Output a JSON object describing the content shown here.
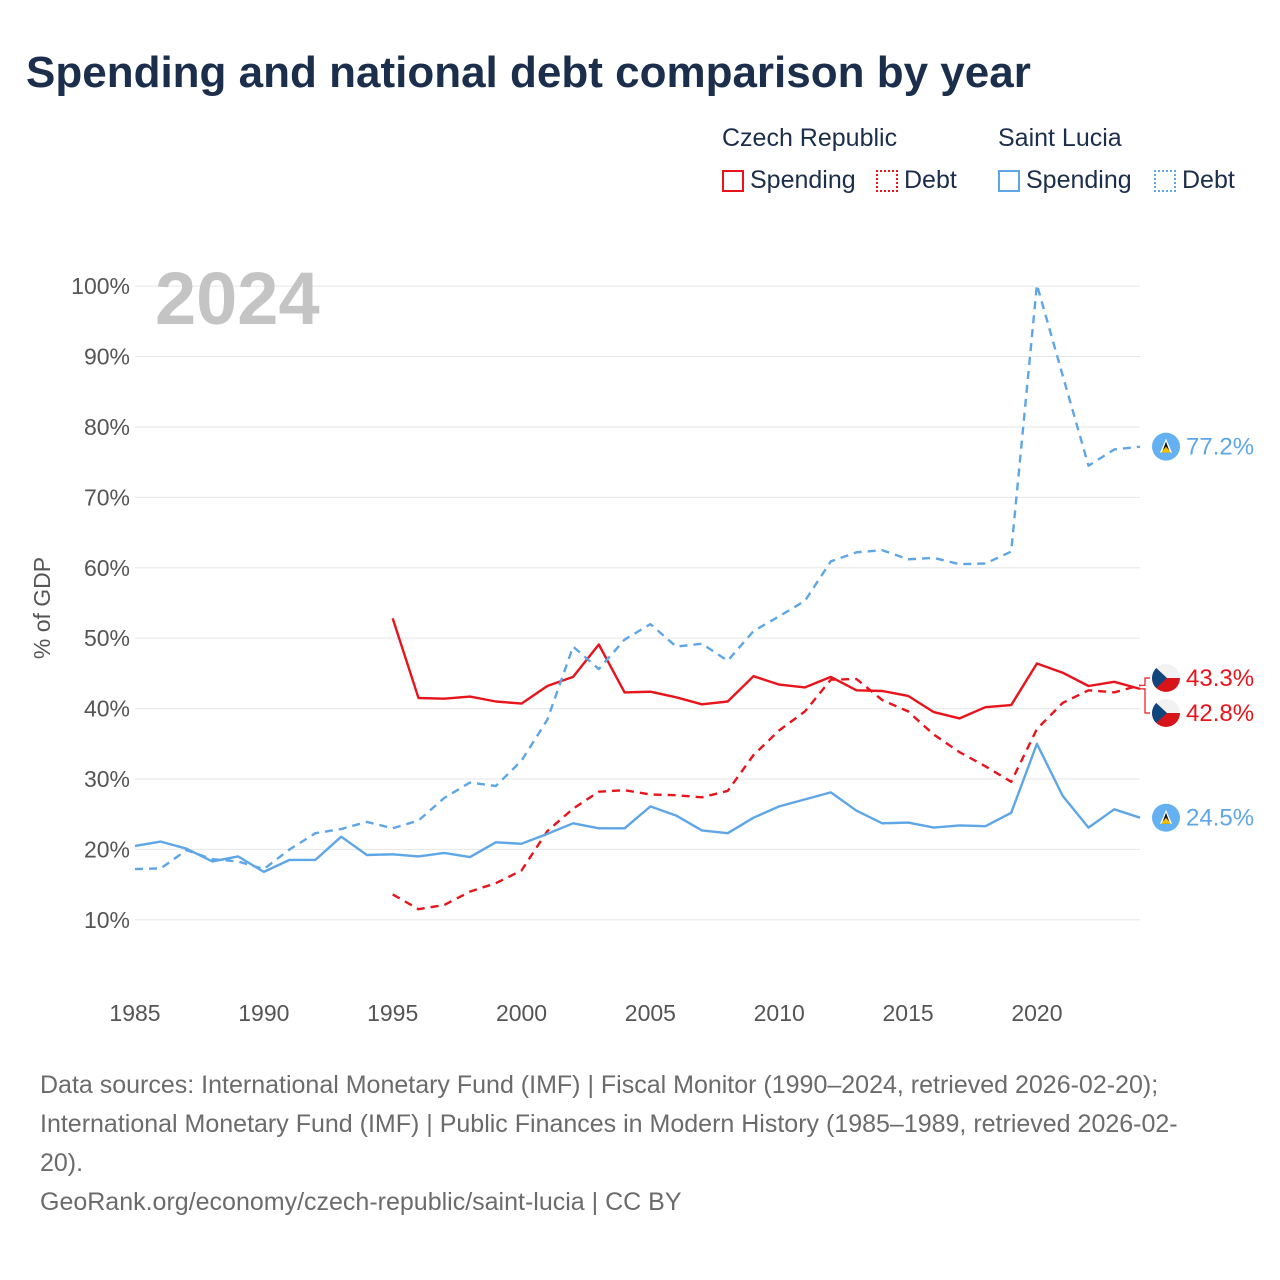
{
  "title": "Spending and national debt comparison by year",
  "legend": {
    "groups": [
      {
        "country": "Czech Republic",
        "color": "#e8141c",
        "items": [
          {
            "label": "Spending",
            "style": "solid"
          },
          {
            "label": "Debt",
            "style": "dotted"
          }
        ]
      },
      {
        "country": "Saint Lucia",
        "color": "#5ea6e6",
        "items": [
          {
            "label": "Spending",
            "style": "solid"
          },
          {
            "label": "Debt",
            "style": "dotted"
          }
        ]
      }
    ]
  },
  "year_watermark": "2024",
  "footer": {
    "sources_line1": "Data sources: International Monetary Fund (IMF) | Fiscal Monitor (1990–2024, retrieved 2026-02-20);",
    "sources_line2": "International Monetary Fund (IMF) | Public Finances in Modern History (1985–1989, retrieved 2026-02-",
    "sources_line3": "20).",
    "attribution": "GeoRank.org/economy/czech-republic/saint-lucia | CC BY"
  },
  "chart_data": {
    "type": "line",
    "title": "Spending and national debt comparison by year",
    "xlabel": "",
    "ylabel": "% of GDP",
    "xlim": [
      1985,
      2024
    ],
    "ylim": [
      5,
      103
    ],
    "x_ticks": [
      1985,
      1990,
      1995,
      2000,
      2005,
      2010,
      2015,
      2020
    ],
    "y_ticks": [
      10,
      20,
      30,
      40,
      50,
      60,
      70,
      80,
      90,
      100
    ],
    "y_tick_labels": [
      "10%",
      "20%",
      "30%",
      "40%",
      "50%",
      "60%",
      "70%",
      "80%",
      "90%",
      "100%"
    ],
    "grid": true,
    "colors": {
      "czech": "#e8141c",
      "lucia": "#5ea6e6"
    },
    "series": [
      {
        "name": "Czech Republic Spending",
        "country": "czech",
        "style": "solid",
        "x": [
          1995,
          1996,
          1997,
          1998,
          1999,
          2000,
          2001,
          2002,
          2003,
          2004,
          2005,
          2006,
          2007,
          2008,
          2009,
          2010,
          2011,
          2012,
          2013,
          2014,
          2015,
          2016,
          2017,
          2018,
          2019,
          2020,
          2021,
          2022,
          2023,
          2024
        ],
        "values": [
          52.8,
          41.5,
          41.4,
          41.7,
          41.0,
          40.7,
          43.2,
          44.5,
          49.1,
          42.3,
          42.4,
          41.6,
          40.6,
          41.0,
          44.6,
          43.4,
          43.0,
          44.5,
          42.6,
          42.5,
          41.8,
          39.5,
          38.6,
          40.2,
          40.5,
          46.4,
          45.1,
          43.2,
          43.8,
          42.8
        ],
        "end_label": "42.8%"
      },
      {
        "name": "Czech Republic Debt",
        "country": "czech",
        "style": "dashed",
        "x": [
          1995,
          1996,
          1997,
          1998,
          1999,
          2000,
          2001,
          2002,
          2003,
          2004,
          2005,
          2006,
          2007,
          2008,
          2009,
          2010,
          2011,
          2012,
          2013,
          2014,
          2015,
          2016,
          2017,
          2018,
          2019,
          2020,
          2021,
          2022,
          2023,
          2024
        ],
        "values": [
          13.6,
          11.5,
          12.1,
          14.0,
          15.2,
          17.0,
          22.6,
          25.8,
          28.2,
          28.4,
          27.8,
          27.7,
          27.4,
          28.3,
          33.4,
          36.9,
          39.6,
          44.1,
          44.2,
          41.2,
          39.6,
          36.3,
          33.8,
          31.8,
          29.6,
          37.1,
          40.8,
          42.6,
          42.3,
          43.3
        ],
        "end_label": "43.3%"
      },
      {
        "name": "Saint Lucia Spending",
        "country": "lucia",
        "style": "solid",
        "x": [
          1985,
          1986,
          1987,
          1988,
          1989,
          1990,
          1991,
          1992,
          1993,
          1994,
          1995,
          1996,
          1997,
          1998,
          1999,
          2000,
          2001,
          2002,
          2003,
          2004,
          2005,
          2006,
          2007,
          2008,
          2009,
          2010,
          2011,
          2012,
          2013,
          2014,
          2015,
          2016,
          2017,
          2018,
          2019,
          2020,
          2021,
          2022,
          2023,
          2024
        ],
        "values": [
          20.5,
          21.1,
          20.1,
          18.3,
          19.0,
          16.8,
          18.5,
          18.5,
          21.8,
          19.2,
          19.3,
          19.0,
          19.5,
          18.9,
          21.0,
          20.8,
          22.2,
          23.7,
          23.0,
          23.0,
          26.1,
          24.8,
          22.7,
          22.3,
          24.5,
          26.1,
          27.1,
          28.1,
          25.5,
          23.7,
          23.8,
          23.1,
          23.4,
          23.3,
          25.2,
          35.0,
          27.6,
          23.1,
          25.7,
          24.5
        ],
        "end_label": "24.5%"
      },
      {
        "name": "Saint Lucia Debt",
        "country": "lucia",
        "style": "dashed",
        "x": [
          1985,
          1986,
          1987,
          1988,
          1989,
          1990,
          1991,
          1992,
          1993,
          1994,
          1995,
          1996,
          1997,
          1998,
          1999,
          2000,
          2001,
          2002,
          2003,
          2004,
          2005,
          2006,
          2007,
          2008,
          2009,
          2010,
          2011,
          2012,
          2013,
          2014,
          2015,
          2016,
          2017,
          2018,
          2019,
          2020,
          2021,
          2022,
          2023,
          2024
        ],
        "values": [
          17.2,
          17.3,
          19.9,
          18.6,
          18.3,
          17.2,
          20.0,
          22.3,
          22.9,
          23.9,
          23.0,
          24.1,
          27.3,
          29.5,
          29.0,
          32.6,
          38.4,
          48.8,
          45.6,
          49.8,
          52.0,
          48.8,
          49.2,
          46.8,
          51.0,
          53.1,
          55.3,
          60.9,
          62.2,
          62.5,
          61.2,
          61.4,
          60.5,
          60.6,
          62.3,
          100.2,
          87.3,
          74.5,
          76.8,
          77.2
        ],
        "end_label": "77.2%"
      }
    ]
  }
}
